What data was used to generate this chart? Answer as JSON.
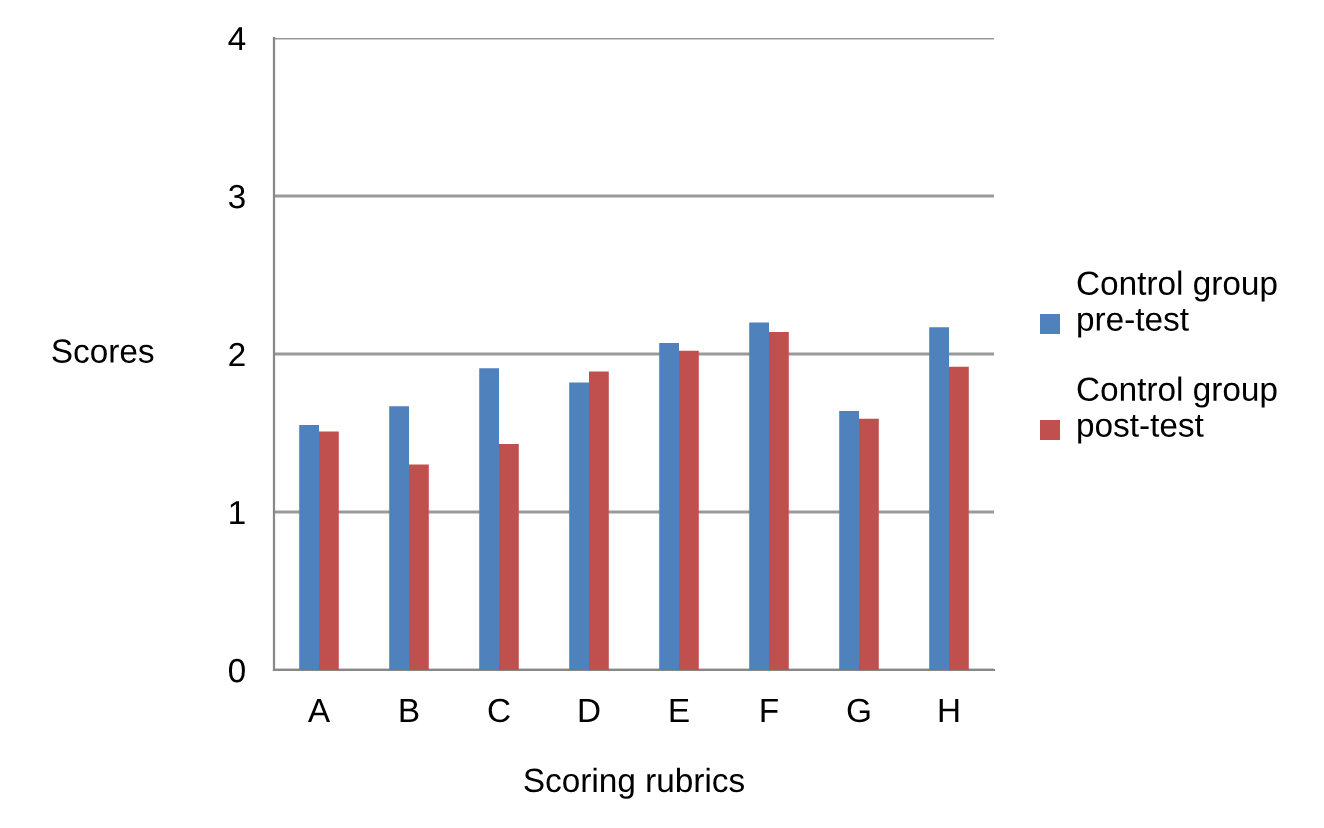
{
  "chart_data": {
    "type": "bar",
    "xlabel": "Scoring rubrics",
    "ylabel": "Scores",
    "categories": [
      "A",
      "B",
      "C",
      "D",
      "E",
      "F",
      "G",
      "H"
    ],
    "series": [
      {
        "name": "Control group pre-test",
        "color": "#4f81bd",
        "values": [
          1.55,
          1.67,
          1.91,
          1.82,
          2.07,
          2.2,
          1.64,
          2.17
        ]
      },
      {
        "name": "Control group post-test",
        "color": "#c0504d",
        "values": [
          1.51,
          1.3,
          1.43,
          1.89,
          2.02,
          2.14,
          1.59,
          1.92
        ]
      }
    ],
    "ylim": [
      0,
      4
    ],
    "yticks": [
      0,
      1,
      2,
      3,
      4
    ],
    "grid": "y",
    "legend": "right"
  }
}
